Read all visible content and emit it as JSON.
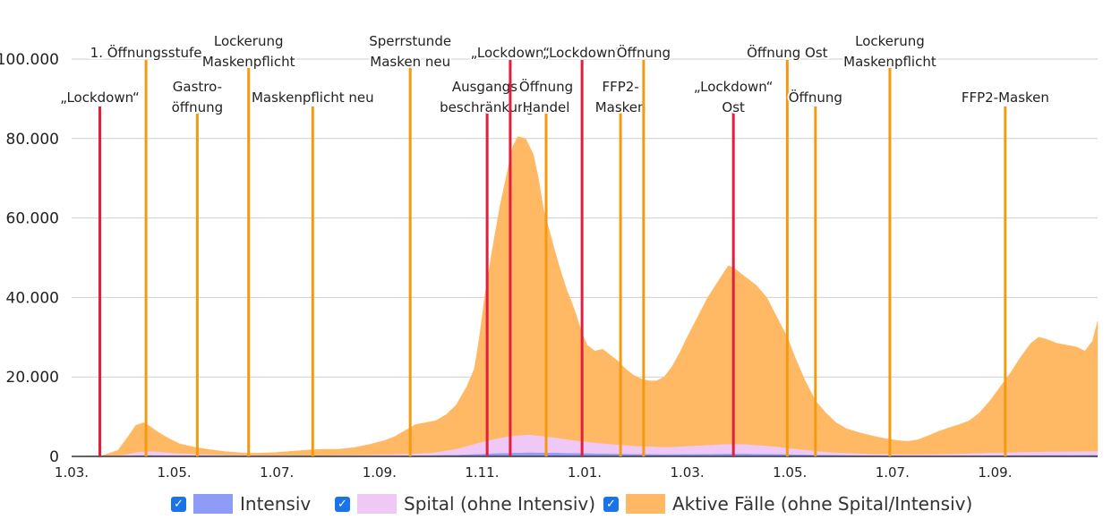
{
  "chart_data": {
    "type": "area",
    "stacked": true,
    "ylim": [
      0,
      100000
    ],
    "yticks": [
      {
        "value": 0,
        "label": "0"
      },
      {
        "value": 20000,
        "label": "20.000"
      },
      {
        "value": 40000,
        "label": "40.000"
      },
      {
        "value": 60000,
        "label": "60.000"
      },
      {
        "value": 80000,
        "label": "80.000"
      },
      {
        "value": 100000,
        "label": "100.000"
      }
    ],
    "x_range_months": [
      0,
      20
    ],
    "xticks": [
      {
        "m": 0,
        "label": "1.03."
      },
      {
        "m": 2,
        "label": "1.05."
      },
      {
        "m": 4,
        "label": "1.07."
      },
      {
        "m": 6,
        "label": "1.09."
      },
      {
        "m": 8,
        "label": "1.11."
      },
      {
        "m": 10,
        "label": "1.01."
      },
      {
        "m": 12,
        "label": "1.03."
      },
      {
        "m": 14,
        "label": "1.05."
      },
      {
        "m": 16,
        "label": "1.07."
      },
      {
        "m": 18,
        "label": "1.09."
      }
    ],
    "series": [
      {
        "name": "Aktive Fälle (ohne Spital/Intensiv)",
        "color": "#ffb964",
        "points": [
          [
            0,
            0
          ],
          [
            0.6,
            200
          ],
          [
            0.9,
            1500
          ],
          [
            1.1,
            5000
          ],
          [
            1.25,
            7800
          ],
          [
            1.4,
            8500
          ],
          [
            1.5,
            7800
          ],
          [
            1.7,
            6000
          ],
          [
            1.9,
            4500
          ],
          [
            2.1,
            3200
          ],
          [
            2.4,
            2300
          ],
          [
            2.7,
            1700
          ],
          [
            3.0,
            1200
          ],
          [
            3.3,
            900
          ],
          [
            3.6,
            800
          ],
          [
            4.0,
            1000
          ],
          [
            4.3,
            1300
          ],
          [
            4.6,
            1600
          ],
          [
            4.9,
            1800
          ],
          [
            5.2,
            1800
          ],
          [
            5.5,
            2200
          ],
          [
            5.8,
            3000
          ],
          [
            6.1,
            4000
          ],
          [
            6.3,
            5000
          ],
          [
            6.5,
            6500
          ],
          [
            6.7,
            8000
          ],
          [
            6.9,
            8500
          ],
          [
            7.1,
            9000
          ],
          [
            7.3,
            10500
          ],
          [
            7.5,
            13000
          ],
          [
            7.7,
            17500
          ],
          [
            7.85,
            22000
          ],
          [
            7.95,
            30000
          ],
          [
            8.05,
            40000
          ],
          [
            8.2,
            52000
          ],
          [
            8.35,
            63000
          ],
          [
            8.5,
            72000
          ],
          [
            8.6,
            78000
          ],
          [
            8.7,
            80500
          ],
          [
            8.85,
            80000
          ],
          [
            9.0,
            76000
          ],
          [
            9.1,
            70000
          ],
          [
            9.2,
            62000
          ],
          [
            9.35,
            55000
          ],
          [
            9.5,
            48000
          ],
          [
            9.65,
            42000
          ],
          [
            9.8,
            37000
          ],
          [
            9.95,
            31000
          ],
          [
            10.05,
            28000
          ],
          [
            10.2,
            26500
          ],
          [
            10.35,
            27000
          ],
          [
            10.5,
            25500
          ],
          [
            10.65,
            24000
          ],
          [
            10.8,
            22000
          ],
          [
            10.95,
            20500
          ],
          [
            11.1,
            19500
          ],
          [
            11.25,
            19000
          ],
          [
            11.4,
            19000
          ],
          [
            11.55,
            20000
          ],
          [
            11.7,
            22500
          ],
          [
            11.85,
            26000
          ],
          [
            12.0,
            30000
          ],
          [
            12.2,
            35000
          ],
          [
            12.4,
            40000
          ],
          [
            12.55,
            43000
          ],
          [
            12.7,
            46000
          ],
          [
            12.8,
            48000
          ],
          [
            12.9,
            47500
          ],
          [
            13.0,
            46500
          ],
          [
            13.15,
            45000
          ],
          [
            13.35,
            43000
          ],
          [
            13.55,
            40000
          ],
          [
            13.75,
            35000
          ],
          [
            13.95,
            30000
          ],
          [
            14.1,
            25000
          ],
          [
            14.3,
            19000
          ],
          [
            14.5,
            14000
          ],
          [
            14.7,
            11000
          ],
          [
            14.9,
            8500
          ],
          [
            15.1,
            7000
          ],
          [
            15.35,
            6000
          ],
          [
            15.6,
            5200
          ],
          [
            15.85,
            4500
          ],
          [
            16.1,
            4000
          ],
          [
            16.3,
            3800
          ],
          [
            16.5,
            4200
          ],
          [
            16.7,
            5200
          ],
          [
            16.9,
            6300
          ],
          [
            17.1,
            7200
          ],
          [
            17.3,
            8000
          ],
          [
            17.5,
            9000
          ],
          [
            17.7,
            11000
          ],
          [
            17.9,
            14000
          ],
          [
            18.1,
            17500
          ],
          [
            18.3,
            21000
          ],
          [
            18.5,
            25000
          ],
          [
            18.7,
            28500
          ],
          [
            18.85,
            30000
          ],
          [
            19.0,
            29500
          ],
          [
            19.2,
            28500
          ],
          [
            19.4,
            28000
          ],
          [
            19.6,
            27500
          ],
          [
            19.75,
            26500
          ],
          [
            19.9,
            29000
          ],
          [
            20.0,
            34000
          ]
        ]
      },
      {
        "name": "Spital (ohne Intensiv)",
        "color": "#f0c8f5",
        "points": [
          [
            0,
            0
          ],
          [
            1.0,
            200
          ],
          [
            1.3,
            900
          ],
          [
            1.6,
            1000
          ],
          [
            2.0,
            600
          ],
          [
            3.0,
            200
          ],
          [
            5.0,
            150
          ],
          [
            6.0,
            300
          ],
          [
            7.0,
            600
          ],
          [
            7.5,
            1500
          ],
          [
            8.0,
            3000
          ],
          [
            8.5,
            4200
          ],
          [
            8.9,
            4500
          ],
          [
            9.3,
            4000
          ],
          [
            9.8,
            3200
          ],
          [
            10.3,
            2600
          ],
          [
            11.0,
            2000
          ],
          [
            11.6,
            1800
          ],
          [
            12.2,
            2100
          ],
          [
            12.7,
            2400
          ],
          [
            13.1,
            2400
          ],
          [
            13.6,
            2000
          ],
          [
            14.2,
            1300
          ],
          [
            14.8,
            700
          ],
          [
            15.5,
            400
          ],
          [
            16.2,
            300
          ],
          [
            17.0,
            400
          ],
          [
            18.0,
            700
          ],
          [
            19.0,
            900
          ],
          [
            20.0,
            1000
          ]
        ]
      },
      {
        "name": "Intensiv",
        "color": "#8e9cf8",
        "points": [
          [
            0,
            0
          ],
          [
            1.0,
            50
          ],
          [
            1.5,
            200
          ],
          [
            2.0,
            150
          ],
          [
            3.0,
            60
          ],
          [
            5.0,
            40
          ],
          [
            6.5,
            80
          ],
          [
            7.5,
            300
          ],
          [
            8.3,
            700
          ],
          [
            8.9,
            900
          ],
          [
            9.5,
            800
          ],
          [
            10.5,
            600
          ],
          [
            11.5,
            450
          ],
          [
            12.5,
            550
          ],
          [
            13.0,
            600
          ],
          [
            13.8,
            500
          ],
          [
            14.5,
            300
          ],
          [
            15.5,
            150
          ],
          [
            16.5,
            80
          ],
          [
            17.5,
            120
          ],
          [
            18.5,
            200
          ],
          [
            20.0,
            250
          ]
        ]
      }
    ],
    "events": [
      {
        "m": 0.55,
        "color": "#e31d3c",
        "label_lines": [
          "„Lockdown“"
        ],
        "label_row": "mid"
      },
      {
        "m": 1.45,
        "color": "#f59a10",
        "label_lines": [
          "1. Öffnungsstufe"
        ],
        "label_row": "top1"
      },
      {
        "m": 2.45,
        "color": "#f59a10",
        "label_lines": [
          "Gastro-",
          "öffnung"
        ],
        "label_row": "mid2"
      },
      {
        "m": 3.45,
        "color": "#f59a10",
        "label_lines": [
          "Lockerung",
          "Maskenpflicht"
        ],
        "label_row": "top2"
      },
      {
        "m": 4.7,
        "color": "#f59a10",
        "label_lines": [
          "Maskenpflicht neu"
        ],
        "label_row": "mid"
      },
      {
        "m": 6.6,
        "color": "#f59a10",
        "label_lines": [
          "Sperrstunde",
          "Masken neu"
        ],
        "label_row": "top2"
      },
      {
        "m": 8.1,
        "color": "#e31d3c",
        "label_lines": [
          "Ausgangs-",
          "beschränkung"
        ],
        "label_row": "mid2"
      },
      {
        "m": 8.55,
        "color": "#e31d3c",
        "label_lines": [
          "„Lockdown“"
        ],
        "label_row": "top1"
      },
      {
        "m": 9.25,
        "color": "#f59a10",
        "label_lines": [
          "Öffnung",
          "Handel"
        ],
        "label_row": "mid2"
      },
      {
        "m": 9.95,
        "color": "#e31d3c",
        "label_lines": [
          "„Lockdown“"
        ],
        "label_row": "top1"
      },
      {
        "m": 10.7,
        "color": "#f59a10",
        "label_lines": [
          "FFP2-",
          "Masken"
        ],
        "label_row": "mid2"
      },
      {
        "m": 11.15,
        "color": "#f59a10",
        "label_lines": [
          "Öffnung"
        ],
        "label_row": "top1"
      },
      {
        "m": 12.9,
        "color": "#e31d3c",
        "label_lines": [
          "„Lockdown“",
          "Ost"
        ],
        "label_row": "mid2"
      },
      {
        "m": 13.95,
        "color": "#f59a10",
        "label_lines": [
          "Öffnung Ost"
        ],
        "label_row": "top1"
      },
      {
        "m": 14.5,
        "color": "#f59a10",
        "label_lines": [
          "Öffnung"
        ],
        "label_row": "mid"
      },
      {
        "m": 15.95,
        "color": "#f59a10",
        "label_lines": [
          "Lockerung",
          "Maskenpflicht"
        ],
        "label_row": "top2"
      },
      {
        "m": 18.2,
        "color": "#f59a10",
        "label_lines": [
          "FFP2-Masken"
        ],
        "label_row": "mid"
      }
    ]
  },
  "legend": {
    "items": [
      {
        "label": "Intensiv",
        "color": "#8e9cf8",
        "checked": "✓"
      },
      {
        "label": "Spital (ohne Intensiv)",
        "color": "#f0c8f5",
        "checked": "✓"
      },
      {
        "label": "Aktive Fälle (ohne Spital/Intensiv)",
        "color": "#ffb964",
        "checked": "✓"
      }
    ]
  }
}
